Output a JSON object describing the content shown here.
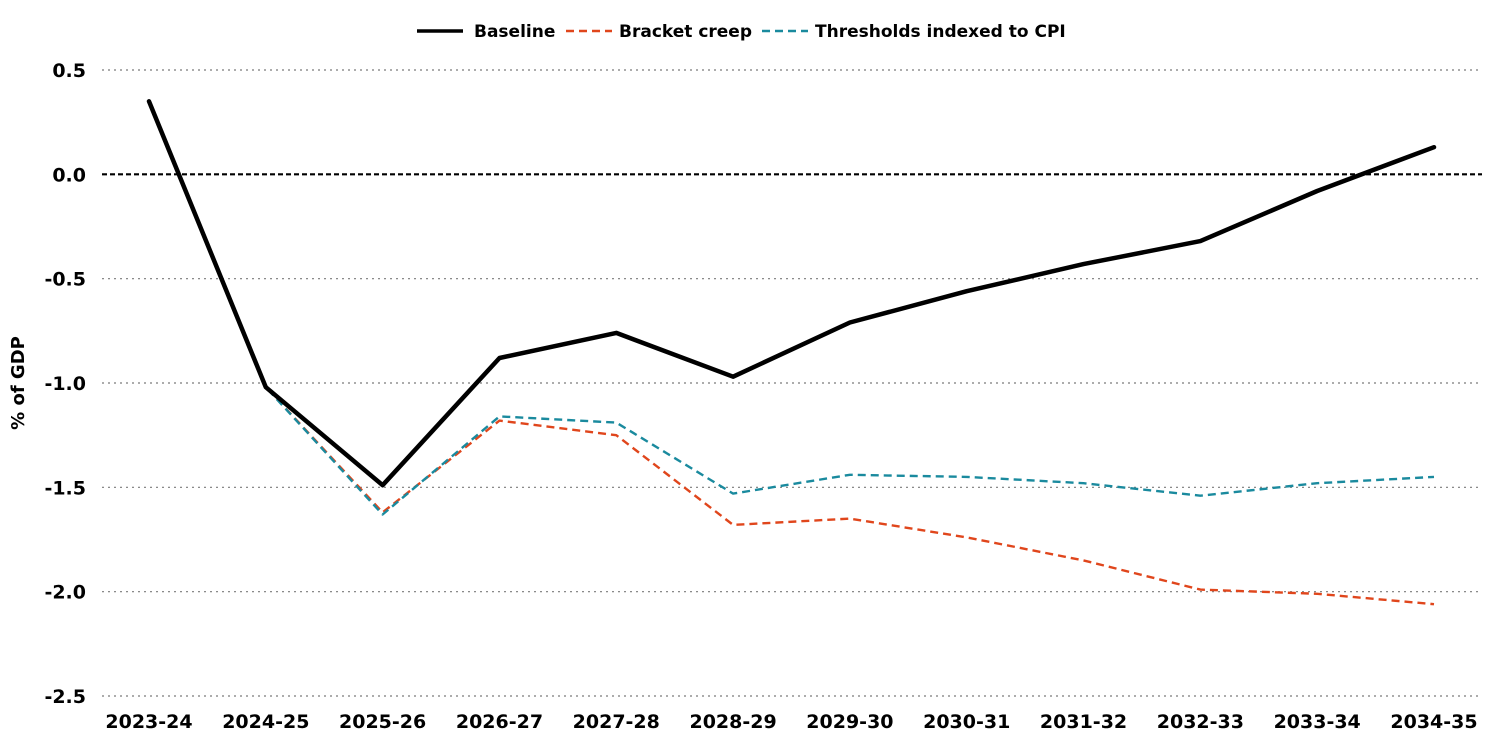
{
  "chart_data": {
    "type": "line",
    "title": "",
    "xlabel": "",
    "ylabel": "% of GDP",
    "ylim": [
      -2.5,
      0.5
    ],
    "yticks": [
      0.5,
      0.0,
      -0.5,
      -1.0,
      -1.5,
      -2.0,
      -2.5
    ],
    "ytick_labels": [
      "0.5",
      "0.0",
      "-0.5",
      "-1.0",
      "-1.5",
      "-2.0",
      "-2.5"
    ],
    "categories": [
      "2023-24",
      "2024-25",
      "2025-26",
      "2026-27",
      "2027-28",
      "2028-29",
      "2029-30",
      "2030-31",
      "2031-32",
      "2032-33",
      "2033-34",
      "2034-35"
    ],
    "grid": true,
    "legend_position": "top-center",
    "series": [
      {
        "name": "Baseline",
        "color": "#000000",
        "style": "solid",
        "values": [
          0.35,
          -1.02,
          -1.49,
          -0.88,
          -0.76,
          -0.97,
          -0.71,
          -0.56,
          -0.43,
          -0.32,
          -0.08,
          0.13
        ]
      },
      {
        "name": "Bracket creep",
        "color": "#e0461c",
        "style": "dashed",
        "values": [
          0.35,
          -1.02,
          -1.62,
          -1.18,
          -1.25,
          -1.68,
          -1.65,
          -1.74,
          -1.85,
          -1.99,
          -2.01,
          -2.06
        ]
      },
      {
        "name": "Thresholds indexed to CPI",
        "color": "#1a8a9e",
        "style": "dashed",
        "values": [
          0.35,
          -1.02,
          -1.63,
          -1.16,
          -1.19,
          -1.53,
          -1.44,
          -1.45,
          -1.48,
          -1.54,
          -1.48,
          -1.45
        ]
      }
    ],
    "reference_line": {
      "y": 0.0,
      "style": "dashed",
      "color": "#000000"
    }
  }
}
